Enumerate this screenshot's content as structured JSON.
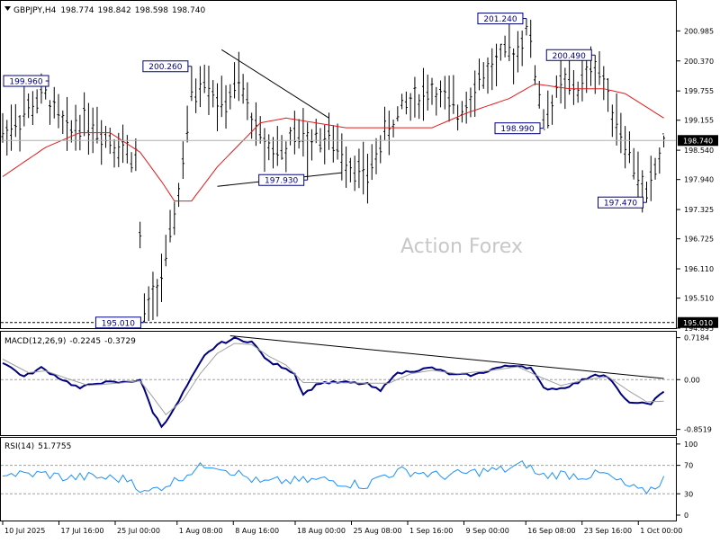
{
  "header": {
    "symbol_label": "GBPJPY,H4",
    "ohlc": [
      "198.774",
      "198.842",
      "198.598",
      "198.740"
    ]
  },
  "watermark": "Action Forex",
  "colors": {
    "price_bar": "#000000",
    "moving_average": "#e41a1c",
    "macd_line": "#000080",
    "macd_signal": "#a0a0a0",
    "rsi_line": "#1e90ff",
    "trendline": "#000000",
    "annotation_text": "#000080",
    "watermark": "#c8c8c8"
  },
  "chart_data": [
    {
      "id": "price",
      "type": "bar",
      "title": "GBPJPY,H4",
      "ylim": [
        194.895,
        201.6
      ],
      "y_ticks": [
        "200.985",
        "200.370",
        "199.755",
        "199.155",
        "198.540",
        "197.940",
        "197.325",
        "196.725",
        "196.110",
        "195.510",
        "194.895"
      ],
      "current_price": "198.740",
      "reference_line": "195.010",
      "annotations": [
        {
          "label": "199.960",
          "value": 199.96,
          "bar": 10
        },
        {
          "label": "200.260",
          "value": 200.26,
          "bar": 44
        },
        {
          "label": "197.930",
          "value": 197.93,
          "bar": 71
        },
        {
          "label": "201.240",
          "value": 201.24,
          "bar": 122
        },
        {
          "label": "200.490",
          "value": 200.49,
          "bar": 138
        },
        {
          "label": "198.990",
          "value": 198.99,
          "bar": 126
        },
        {
          "label": "197.470",
          "value": 197.47,
          "bar": 150
        },
        {
          "label": "195.010",
          "value": 195.01,
          "bar": 33
        }
      ],
      "anchors": [
        [
          0,
          198.9
        ],
        [
          4,
          199.2
        ],
        [
          10,
          199.7
        ],
        [
          15,
          198.9
        ],
        [
          19,
          199.2
        ],
        [
          25,
          198.8
        ],
        [
          31,
          198.4
        ],
        [
          33,
          195.05
        ],
        [
          38,
          196.2
        ],
        [
          41,
          197.7
        ],
        [
          44,
          199.6
        ],
        [
          47,
          200.1
        ],
        [
          51,
          199.4
        ],
        [
          55,
          199.9
        ],
        [
          60,
          198.8
        ],
        [
          65,
          198.5
        ],
        [
          70,
          198.9
        ],
        [
          75,
          198.8
        ],
        [
          80,
          198.4
        ],
        [
          85,
          197.95
        ],
        [
          88,
          198.7
        ],
        [
          94,
          199.5
        ],
        [
          100,
          199.8
        ],
        [
          106,
          199.3
        ],
        [
          110,
          199.9
        ],
        [
          116,
          200.4
        ],
        [
          120,
          200.6
        ],
        [
          122,
          201.2
        ],
        [
          126,
          199.1
        ],
        [
          130,
          199.9
        ],
        [
          134,
          199.8
        ],
        [
          138,
          200.4
        ],
        [
          141,
          199.7
        ],
        [
          145,
          198.7
        ],
        [
          150,
          197.55
        ],
        [
          154,
          198.7
        ]
      ],
      "ma_anchors": [
        [
          0,
          198.0
        ],
        [
          10,
          198.6
        ],
        [
          18,
          198.9
        ],
        [
          25,
          198.9
        ],
        [
          32,
          198.5
        ],
        [
          37,
          197.9
        ],
        [
          40,
          197.5
        ],
        [
          44,
          197.5
        ],
        [
          50,
          198.2
        ],
        [
          60,
          199.1
        ],
        [
          66,
          199.2
        ],
        [
          80,
          199.0
        ],
        [
          90,
          199.0
        ],
        [
          100,
          199.0
        ],
        [
          108,
          199.3
        ],
        [
          118,
          199.6
        ],
        [
          124,
          199.9
        ],
        [
          132,
          199.8
        ],
        [
          140,
          199.8
        ],
        [
          145,
          199.7
        ],
        [
          154,
          199.2
        ]
      ],
      "trendlines": [
        [
          [
            51,
            200.6
          ],
          [
            76,
            199.2
          ]
        ],
        [
          [
            50,
            197.8
          ],
          [
            79,
            198.08
          ]
        ]
      ]
    },
    {
      "id": "macd",
      "type": "line",
      "title": "MACD(12,26,9)",
      "readout": [
        "-0.2245",
        "-0.3729"
      ],
      "ylim": [
        -0.95,
        0.82
      ],
      "y_ticks": [
        "0.7184",
        "0.00",
        "-0.8519"
      ],
      "series": [
        {
          "role": "macd",
          "anchors": [
            [
              0,
              0.3
            ],
            [
              5,
              0.05
            ],
            [
              9,
              0.2
            ],
            [
              14,
              0.0
            ],
            [
              18,
              -0.15
            ],
            [
              22,
              -0.05
            ],
            [
              28,
              -0.05
            ],
            [
              32,
              0.0
            ],
            [
              35,
              -0.55
            ],
            [
              37,
              -0.8
            ],
            [
              40,
              -0.5
            ],
            [
              43,
              -0.1
            ],
            [
              47,
              0.4
            ],
            [
              50,
              0.6
            ],
            [
              54,
              0.7
            ],
            [
              58,
              0.65
            ],
            [
              62,
              0.3
            ],
            [
              66,
              0.2
            ],
            [
              68,
              0.1
            ],
            [
              70,
              -0.25
            ],
            [
              74,
              -0.05
            ],
            [
              80,
              -0.05
            ],
            [
              85,
              -0.08
            ],
            [
              88,
              -0.2
            ],
            [
              91,
              0.08
            ],
            [
              95,
              0.15
            ],
            [
              100,
              0.2
            ],
            [
              105,
              0.08
            ],
            [
              110,
              0.08
            ],
            [
              115,
              0.2
            ],
            [
              120,
              0.25
            ],
            [
              123,
              0.2
            ],
            [
              126,
              -0.15
            ],
            [
              130,
              -0.15
            ],
            [
              134,
              -0.05
            ],
            [
              138,
              0.1
            ],
            [
              141,
              0.05
            ],
            [
              145,
              -0.35
            ],
            [
              148,
              -0.42
            ],
            [
              151,
              -0.4
            ],
            [
              154,
              -0.22
            ]
          ]
        },
        {
          "role": "signal",
          "anchors": [
            [
              0,
              0.35
            ],
            [
              6,
              0.12
            ],
            [
              10,
              0.15
            ],
            [
              15,
              0.02
            ],
            [
              20,
              -0.1
            ],
            [
              27,
              -0.06
            ],
            [
              32,
              -0.02
            ],
            [
              35,
              -0.3
            ],
            [
              38,
              -0.6
            ],
            [
              42,
              -0.35
            ],
            [
              46,
              0.1
            ],
            [
              50,
              0.45
            ],
            [
              54,
              0.62
            ],
            [
              58,
              0.6
            ],
            [
              62,
              0.4
            ],
            [
              66,
              0.25
            ],
            [
              70,
              -0.05
            ],
            [
              75,
              -0.05
            ],
            [
              85,
              -0.06
            ],
            [
              90,
              -0.06
            ],
            [
              95,
              0.1
            ],
            [
              100,
              0.16
            ],
            [
              106,
              0.1
            ],
            [
              113,
              0.15
            ],
            [
              120,
              0.22
            ],
            [
              125,
              0.05
            ],
            [
              130,
              -0.1
            ],
            [
              136,
              0.0
            ],
            [
              141,
              0.05
            ],
            [
              146,
              -0.2
            ],
            [
              150,
              -0.38
            ],
            [
              154,
              -0.37
            ]
          ]
        }
      ],
      "trendline": [
        [
          53,
          0.75
        ],
        [
          154,
          0.02
        ]
      ]
    },
    {
      "id": "rsi",
      "type": "line",
      "title": "RSI(14)",
      "readout": "51.7755",
      "ylim": [
        0,
        100
      ],
      "y_ticks": [
        "100",
        "70",
        "30",
        "0"
      ],
      "levels": [
        70,
        30
      ],
      "anchors": [
        [
          0,
          60
        ],
        [
          4,
          57
        ],
        [
          10,
          58
        ],
        [
          15,
          52
        ],
        [
          20,
          54
        ],
        [
          25,
          52
        ],
        [
          30,
          50
        ],
        [
          33,
          30
        ],
        [
          36,
          38
        ],
        [
          40,
          48
        ],
        [
          44,
          62
        ],
        [
          48,
          72
        ],
        [
          50,
          70
        ],
        [
          55,
          58
        ],
        [
          60,
          45
        ],
        [
          65,
          48
        ],
        [
          70,
          48
        ],
        [
          75,
          50
        ],
        [
          80,
          45
        ],
        [
          85,
          42
        ],
        [
          88,
          55
        ],
        [
          93,
          62
        ],
        [
          97,
          60
        ],
        [
          102,
          55
        ],
        [
          107,
          58
        ],
        [
          112,
          62
        ],
        [
          117,
          64
        ],
        [
          122,
          72
        ],
        [
          125,
          55
        ],
        [
          130,
          58
        ],
        [
          135,
          55
        ],
        [
          140,
          58
        ],
        [
          145,
          42
        ],
        [
          149,
          32
        ],
        [
          152,
          40
        ],
        [
          154,
          52
        ]
      ]
    }
  ],
  "x_axis": {
    "labels": [
      {
        "text": "10 Jul 2025",
        "bar": 0
      },
      {
        "text": "17 Jul 16:00",
        "bar": 10
      },
      {
        "text": "25 Jul 00:00",
        "bar": 20
      },
      {
        "text": "1 Aug 08:00",
        "bar": 31
      },
      {
        "text": "8 Aug 16:00",
        "bar": 41
      },
      {
        "text": "18 Aug 00:00",
        "bar": 52
      },
      {
        "text": "25 Aug 08:00",
        "bar": 62
      },
      {
        "text": "1 Sep 16:00",
        "bar": 72
      },
      {
        "text": "9 Sep 00:00",
        "bar": 82
      },
      {
        "text": "16 Sep 08:00",
        "bar": 93
      },
      {
        "text": "23 Sep 16:00",
        "bar": 103
      },
      {
        "text": "1 Oct 00:00",
        "bar": 113
      }
    ]
  }
}
